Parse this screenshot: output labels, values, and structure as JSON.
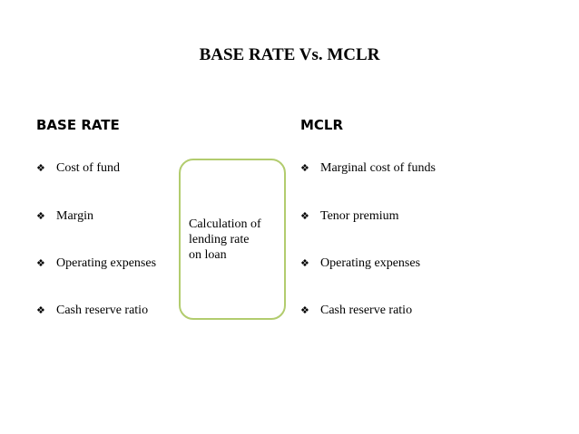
{
  "title": "BASE RATE Vs. MCLR",
  "left": {
    "heading": "BASE RATE",
    "items": [
      "Cost of fund",
      "Margin",
      "Operating expenses",
      "Cash reserve ratio"
    ]
  },
  "right": {
    "heading": "MCLR",
    "items": [
      "Marginal cost of funds",
      "Tenor premium",
      "Operating expenses",
      "Cash reserve ratio"
    ]
  },
  "center": {
    "lines": [
      "Calculation of",
      "lending rate",
      "on loan"
    ],
    "border_color": "#b2cc6e"
  },
  "bullet_icon": "diamond-quad-bullet-icon"
}
